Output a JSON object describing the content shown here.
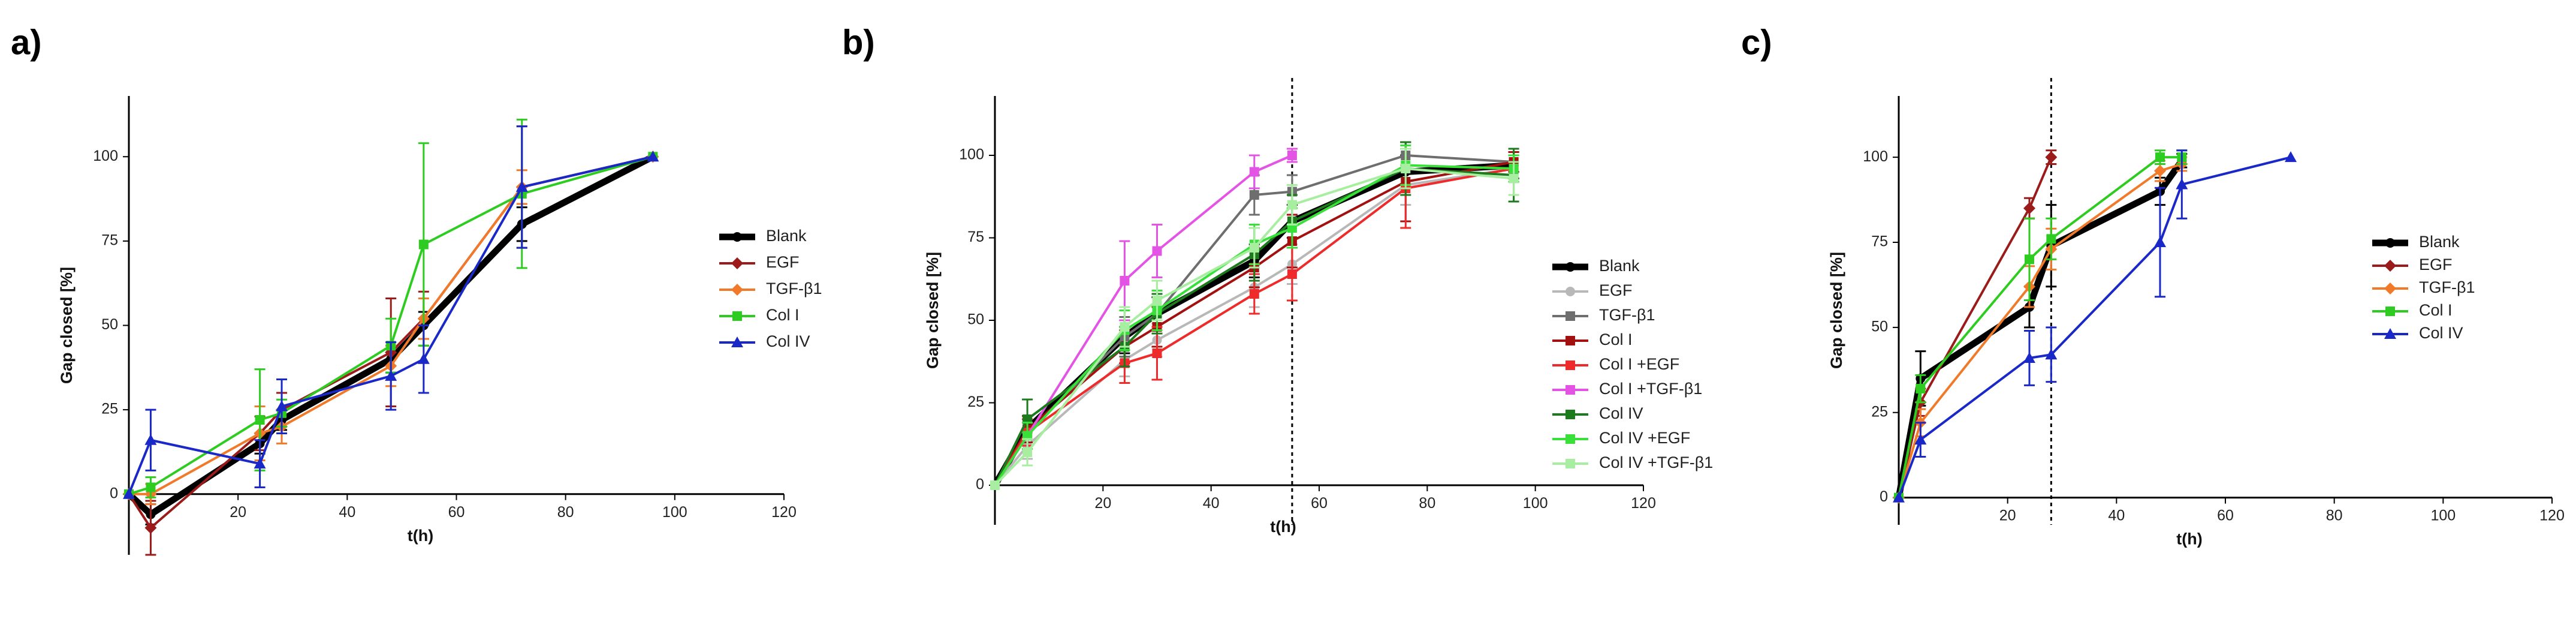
{
  "chart_data": [
    {
      "type": "line",
      "panel_label": "a)",
      "xlabel": "t(h)",
      "ylabel": "Gap closed [%]",
      "xlim": [
        0,
        120
      ],
      "ylim": [
        -18,
        118
      ],
      "xticks": [
        "20",
        "40",
        "60",
        "80",
        "100",
        "120"
      ],
      "yticks": [
        "0",
        "25",
        "50",
        "75",
        "100"
      ],
      "grid": false,
      "legend": "right",
      "series": [
        {
          "name": "Blank",
          "color": "#000000",
          "marker": "circle",
          "x": [
            0,
            4,
            24,
            28,
            48,
            54,
            72,
            96
          ],
          "y": [
            0,
            -6,
            15,
            22,
            40,
            50,
            80,
            100
          ],
          "err": [
            0,
            3,
            3,
            3,
            4,
            4,
            5,
            0
          ]
        },
        {
          "name": "EGF",
          "color": "#9b1b1b",
          "marker": "diamond",
          "x": [
            0,
            4,
            24,
            28,
            48,
            54,
            72,
            96
          ],
          "y": [
            0,
            -10,
            18,
            25,
            42,
            52,
            91,
            100
          ],
          "err": [
            0,
            8,
            5,
            5,
            16,
            8,
            18,
            0
          ]
        },
        {
          "name": "TGF-β1",
          "color": "#f07a2a",
          "marker": "diamond",
          "x": [
            0,
            4,
            24,
            28,
            48,
            54,
            72,
            96
          ],
          "y": [
            0,
            0,
            18,
            20,
            38,
            52,
            91,
            100
          ],
          "err": [
            0,
            3,
            8,
            5,
            6,
            6,
            5,
            0
          ]
        },
        {
          "name": "Col I",
          "color": "#2ecc20",
          "marker": "square",
          "x": [
            0,
            4,
            24,
            28,
            48,
            54,
            72,
            96
          ],
          "y": [
            0,
            2,
            22,
            24,
            44,
            74,
            89,
            100
          ],
          "err": [
            0,
            3,
            15,
            4,
            8,
            30,
            22,
            0
          ]
        },
        {
          "name": "Col IV",
          "color": "#1a28c8",
          "marker": "triangle",
          "x": [
            0,
            4,
            24,
            28,
            48,
            54,
            72,
            96
          ],
          "y": [
            0,
            16,
            9,
            26,
            35,
            40,
            91,
            100
          ],
          "err": [
            0,
            9,
            7,
            8,
            10,
            10,
            18,
            0
          ]
        }
      ]
    },
    {
      "type": "line",
      "panel_label": "b)",
      "xlabel": "t(h)",
      "ylabel": "Gap closed [%]",
      "xlim": [
        0,
        120
      ],
      "ylim": [
        -12,
        118
      ],
      "xticks": [
        "20",
        "40",
        "60",
        "80",
        "100",
        "120"
      ],
      "yticks": [
        "0",
        "25",
        "50",
        "75",
        "100"
      ],
      "vline": 55,
      "grid": false,
      "legend": "right",
      "series": [
        {
          "name": "Blank",
          "color": "#000000",
          "marker": "circle",
          "x": [
            0,
            6,
            24,
            30,
            48,
            55,
            76,
            96
          ],
          "y": [
            0,
            17,
            45,
            52,
            68,
            80,
            95,
            97
          ],
          "err": [
            0,
            3,
            5,
            5,
            5,
            5,
            5,
            4
          ]
        },
        {
          "name": "EGF",
          "color": "#b8b8b8",
          "marker": "circle",
          "x": [
            0,
            6,
            24,
            30,
            48,
            55,
            76,
            96
          ],
          "y": [
            0,
            12,
            38,
            44,
            60,
            67,
            91,
            96
          ],
          "err": [
            0,
            4,
            5,
            5,
            6,
            6,
            6,
            4
          ]
        },
        {
          "name": "TGF-β1",
          "color": "#6e6e6e",
          "marker": "square",
          "x": [
            0,
            6,
            24,
            30,
            48,
            55,
            76,
            96
          ],
          "y": [
            0,
            16,
            45,
            52,
            88,
            89,
            100,
            98
          ],
          "err": [
            0,
            4,
            6,
            6,
            6,
            5,
            4,
            3
          ]
        },
        {
          "name": "Col I",
          "color": "#a31010",
          "marker": "square",
          "x": [
            0,
            6,
            24,
            30,
            48,
            55,
            76,
            96
          ],
          "y": [
            0,
            17,
            42,
            48,
            66,
            74,
            92,
            98
          ],
          "err": [
            0,
            4,
            5,
            6,
            6,
            8,
            12,
            3
          ]
        },
        {
          "name": "Col I +EGF",
          "color": "#ee2a2a",
          "marker": "square",
          "x": [
            0,
            6,
            24,
            30,
            48,
            55,
            76,
            96
          ],
          "y": [
            0,
            16,
            37,
            40,
            58,
            64,
            90,
            96
          ],
          "err": [
            0,
            4,
            6,
            8,
            6,
            8,
            12,
            4
          ]
        },
        {
          "name": "Col I +TGF-β1",
          "color": "#e454e4",
          "marker": "square",
          "x": [
            0,
            6,
            24,
            30,
            48,
            55
          ],
          "y": [
            0,
            15,
            62,
            71,
            95,
            100
          ],
          "err": [
            0,
            4,
            12,
            8,
            5,
            2
          ]
        },
        {
          "name": "Col IV",
          "color": "#1d7a1d",
          "marker": "square",
          "x": [
            0,
            6,
            24,
            30,
            48,
            55,
            76,
            96
          ],
          "y": [
            0,
            20,
            42,
            52,
            70,
            80,
            96,
            94
          ],
          "err": [
            0,
            6,
            6,
            6,
            8,
            8,
            8,
            8
          ]
        },
        {
          "name": "Col IV +EGF",
          "color": "#39e039",
          "marker": "square",
          "x": [
            0,
            6,
            24,
            30,
            48,
            55,
            76,
            96
          ],
          "y": [
            0,
            15,
            47,
            53,
            73,
            78,
            97,
            96
          ],
          "err": [
            0,
            4,
            6,
            6,
            6,
            6,
            6,
            4
          ]
        },
        {
          "name": "Col IV +TGF-β1",
          "color": "#a8eea0",
          "marker": "square",
          "x": [
            0,
            6,
            24,
            30,
            48,
            55,
            76,
            96
          ],
          "y": [
            0,
            10,
            48,
            56,
            72,
            85,
            96,
            93
          ],
          "err": [
            0,
            4,
            6,
            6,
            6,
            6,
            6,
            5
          ]
        }
      ]
    },
    {
      "type": "line",
      "panel_label": "c)",
      "xlabel": "t(h)",
      "ylabel": "Gap closed [%]",
      "xlim": [
        0,
        120
      ],
      "ylim": [
        -8,
        118
      ],
      "xticks": [
        "20",
        "40",
        "60",
        "80",
        "100",
        "120"
      ],
      "yticks": [
        "0",
        "25",
        "50",
        "75",
        "100"
      ],
      "vline": 28,
      "grid": false,
      "legend": "right",
      "series": [
        {
          "name": "Blank",
          "color": "#000000",
          "marker": "circle",
          "x": [
            0,
            4,
            24,
            28,
            48,
            52
          ],
          "y": [
            0,
            35,
            56,
            74,
            90,
            99
          ],
          "err": [
            0,
            8,
            6,
            12,
            4,
            2
          ]
        },
        {
          "name": "EGF",
          "color": "#9b1b1b",
          "marker": "diamond",
          "x": [
            0,
            4,
            24,
            28
          ],
          "y": [
            0,
            28,
            85,
            100
          ],
          "err": [
            0,
            4,
            3,
            2
          ]
        },
        {
          "name": "TGF-β1",
          "color": "#f07a2a",
          "marker": "diamond",
          "x": [
            0,
            4,
            24,
            28,
            48,
            52
          ],
          "y": [
            0,
            22,
            62,
            73,
            96,
            98
          ],
          "err": [
            0,
            4,
            6,
            6,
            3,
            2
          ]
        },
        {
          "name": "Col I",
          "color": "#2ecc20",
          "marker": "square",
          "x": [
            0,
            4,
            24,
            28,
            48,
            52
          ],
          "y": [
            0,
            32,
            70,
            76,
            100,
            100
          ],
          "err": [
            0,
            4,
            12,
            6,
            2,
            2
          ]
        },
        {
          "name": "Col IV",
          "color": "#1a28c8",
          "marker": "triangle",
          "x": [
            0,
            4,
            24,
            28,
            48,
            52,
            72
          ],
          "y": [
            0,
            17,
            41,
            42,
            75,
            92,
            100
          ],
          "err": [
            0,
            5,
            8,
            8,
            16,
            10,
            0
          ]
        }
      ]
    }
  ]
}
